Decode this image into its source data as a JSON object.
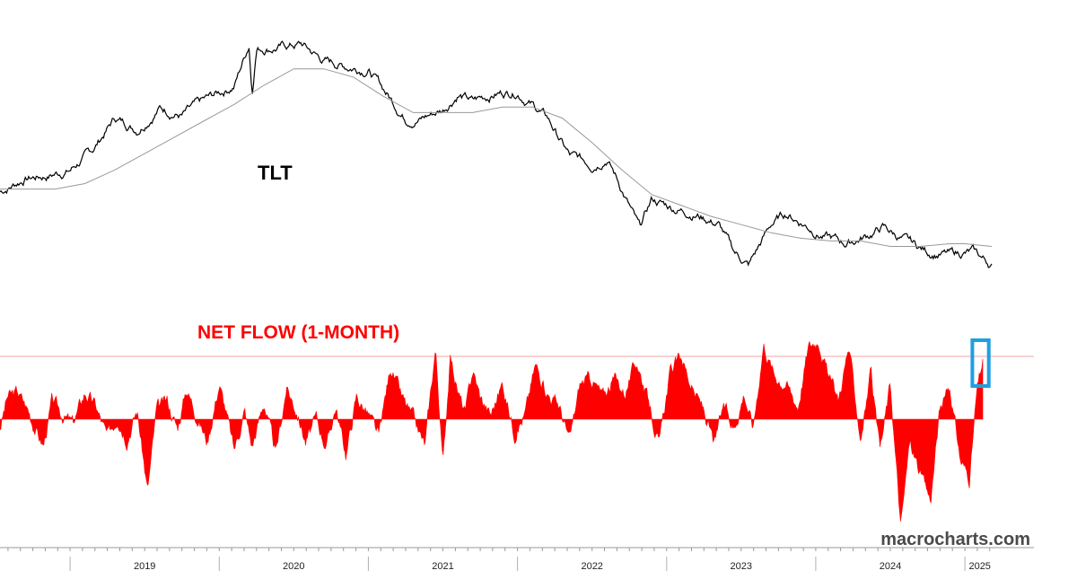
{
  "chart_data": [
    {
      "type": "line",
      "title": "TLT",
      "x_years": [
        "2019",
        "2020",
        "2021",
        "2022",
        "2023",
        "2024",
        "2025"
      ],
      "xlim": [
        2018.53,
        2025.18
      ],
      "ylim": [
        82,
        175
      ],
      "grid": false,
      "series": [
        {
          "color": "#000000",
          "x": [
            2018.53,
            2018.7,
            2018.85,
            2019.0,
            2019.15,
            2019.3,
            2019.45,
            2019.6,
            2019.75,
            2019.9,
            2020.1,
            2020.2,
            2020.22,
            2020.25,
            2020.4,
            2020.55,
            2020.7,
            2020.85,
            2021.0,
            2021.15,
            2021.25,
            2021.35,
            2021.5,
            2021.6,
            2021.7,
            2021.85,
            2022.0,
            2022.1,
            2022.2,
            2022.35,
            2022.5,
            2022.6,
            2022.7,
            2022.82,
            2022.9,
            2023.05,
            2023.2,
            2023.35,
            2023.45,
            2023.55,
            2023.7,
            2023.8,
            2023.9,
            2024.05,
            2024.2,
            2024.35,
            2024.45,
            2024.6,
            2024.75,
            2024.9,
            2025.05,
            2025.18
          ],
          "y": [
            113,
            118,
            119,
            121,
            128,
            140,
            136,
            144,
            141,
            146,
            152,
            167,
            150,
            166,
            166,
            167,
            161,
            159,
            158,
            147,
            140,
            140,
            143,
            149,
            146,
            149,
            150,
            145,
            140,
            126,
            123,
            126,
            114,
            99,
            110,
            107,
            105,
            101,
            91,
            86,
            101,
            105,
            102,
            97,
            94,
            97,
            100,
            95,
            91,
            90,
            91,
            86
          ]
        },
        {
          "color": "#999999",
          "x": [
            2018.53,
            2018.7,
            2018.9,
            2019.1,
            2019.3,
            2019.5,
            2019.7,
            2019.9,
            2020.1,
            2020.3,
            2020.5,
            2020.7,
            2020.9,
            2021.1,
            2021.3,
            2021.5,
            2021.7,
            2021.9,
            2022.1,
            2022.3,
            2022.5,
            2022.7,
            2022.9,
            2023.1,
            2023.3,
            2023.5,
            2023.7,
            2023.9,
            2024.1,
            2024.3,
            2024.5,
            2024.7,
            2024.9,
            2025.0,
            2025.18
          ],
          "y": [
            114,
            114,
            114,
            116,
            121,
            127,
            133,
            139,
            145,
            152,
            158,
            158,
            155,
            148,
            142,
            142,
            142,
            144,
            144,
            140,
            131,
            121,
            112,
            108,
            104,
            101,
            98,
            96,
            95,
            95,
            93,
            93,
            94,
            94,
            93
          ]
        }
      ]
    },
    {
      "type": "area",
      "title": "NET FLOW (1-MONTH)",
      "x_years": [
        "2019",
        "2020",
        "2021",
        "2022",
        "2023",
        "2024",
        "2025"
      ],
      "xlim": [
        2018.53,
        2025.18
      ],
      "ylim": [
        -1.2,
        1.2
      ],
      "zero_line": 0,
      "reference_line": 0.7,
      "grid": false,
      "series": [
        {
          "color": "#ff0000",
          "x": [
            2018.53,
            2018.58,
            2018.65,
            2018.72,
            2018.78,
            2018.82,
            2018.88,
            2018.95,
            2019.02,
            2019.1,
            2019.17,
            2019.25,
            2019.32,
            2019.38,
            2019.45,
            2019.52,
            2019.58,
            2019.65,
            2019.72,
            2019.78,
            2019.85,
            2019.92,
            2020.0,
            2020.05,
            2020.1,
            2020.17,
            2020.22,
            2020.3,
            2020.38,
            2020.45,
            2020.52,
            2020.58,
            2020.65,
            2020.72,
            2020.78,
            2020.85,
            2020.92,
            2021.0,
            2021.07,
            2021.15,
            2021.22,
            2021.3,
            2021.38,
            2021.45,
            2021.5,
            2021.55,
            2021.6,
            2021.65,
            2021.7,
            2021.75,
            2021.82,
            2021.9,
            2021.98,
            2022.05,
            2022.12,
            2022.2,
            2022.28,
            2022.35,
            2022.42,
            2022.5,
            2022.57,
            2022.65,
            2022.72,
            2022.8,
            2022.88,
            2022.95,
            2023.02,
            2023.1,
            2023.18,
            2023.25,
            2023.32,
            2023.38,
            2023.45,
            2023.52,
            2023.58,
            2023.65,
            2023.72,
            2023.8,
            2023.88,
            2023.95,
            2024.02,
            2024.08,
            2024.15,
            2024.22,
            2024.3,
            2024.37,
            2024.43,
            2024.5,
            2024.57,
            2024.63,
            2024.7,
            2024.77,
            2024.83,
            2024.9,
            2024.97,
            2025.03,
            2025.08,
            2025.12
          ],
          "y": [
            -0.1,
            0.25,
            0.3,
            0.1,
            -0.15,
            -0.3,
            0.2,
            0.05,
            -0.05,
            0.3,
            0.15,
            -0.2,
            0.05,
            -0.2,
            0.1,
            -0.8,
            0.1,
            0.2,
            -0.1,
            0.35,
            0.05,
            -0.25,
            0.4,
            0.05,
            -0.35,
            0.1,
            -0.3,
            0.2,
            -0.4,
            0.35,
            0.1,
            -0.25,
            0.0,
            -0.3,
            0.15,
            -0.4,
            0.25,
            0.05,
            -0.2,
            0.6,
            0.25,
            0.0,
            -0.3,
            0.8,
            -0.5,
            0.7,
            0.3,
            0.05,
            0.55,
            0.25,
            0.05,
            0.4,
            -0.15,
            0.05,
            0.6,
            0.3,
            0.15,
            -0.25,
            0.4,
            0.45,
            0.25,
            0.45,
            0.3,
            0.65,
            0.2,
            -0.3,
            0.5,
            0.7,
            0.3,
            0.1,
            -0.3,
            0.15,
            -0.1,
            0.3,
            -0.1,
            0.85,
            0.5,
            0.4,
            0.15,
            0.8,
            0.9,
            0.5,
            0.2,
            0.8,
            -0.2,
            0.5,
            -0.4,
            0.4,
            -1.2,
            -0.25,
            -0.6,
            -0.9,
            0.1,
            0.35,
            -0.45,
            -0.65,
            0.3,
            0.65
          ]
        }
      ]
    }
  ],
  "watermark": "macrocharts.com",
  "highlight": {
    "color": "#1f9fe0",
    "x_range": [
      2025.05,
      2025.16
    ]
  }
}
